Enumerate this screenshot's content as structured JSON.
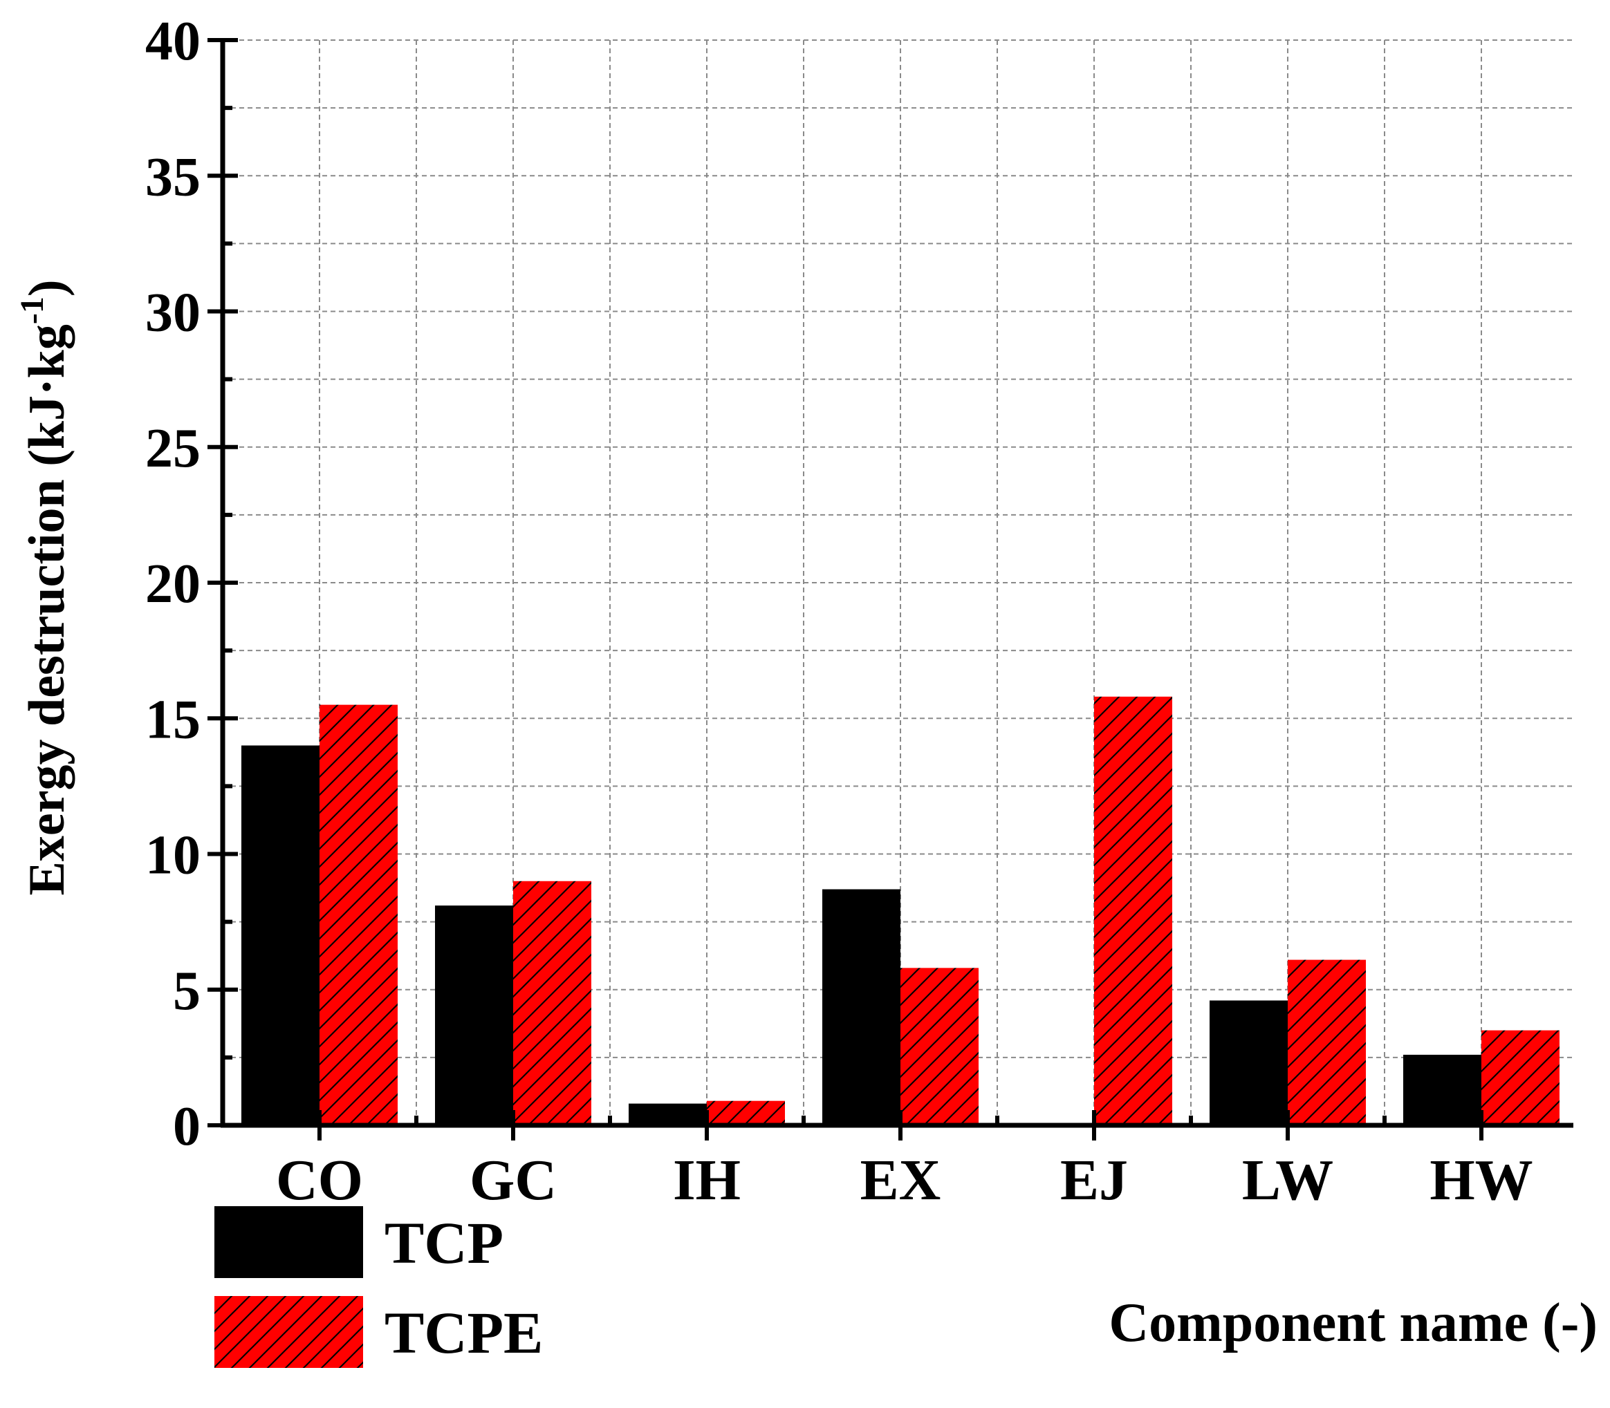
{
  "chart_data": {
    "type": "bar",
    "categories": [
      "CO",
      "GC",
      "IH",
      "EX",
      "EJ",
      "LW",
      "HW"
    ],
    "series": [
      {
        "name": "TCP",
        "values": [
          14.0,
          8.1,
          0.8,
          8.7,
          0,
          4.6,
          2.6
        ],
        "color": "#000000",
        "pattern": "solid"
      },
      {
        "name": "TCPE",
        "values": [
          15.5,
          9.0,
          0.9,
          5.8,
          15.8,
          6.1,
          3.5
        ],
        "color": "#ff0000",
        "pattern": "diagonal-hatch"
      }
    ],
    "xlabel": "Component name (-)",
    "ylabel": "Exergy destruction (kJ·kg",
    "ylabel_sup": "-1",
    "ylabel_end": ")",
    "ylim": [
      0,
      40
    ],
    "yticks": [
      "0",
      "5",
      "10",
      "15",
      "20",
      "25",
      "30",
      "35",
      "40"
    ],
    "grid": true,
    "legend_position": "bottom-left"
  }
}
